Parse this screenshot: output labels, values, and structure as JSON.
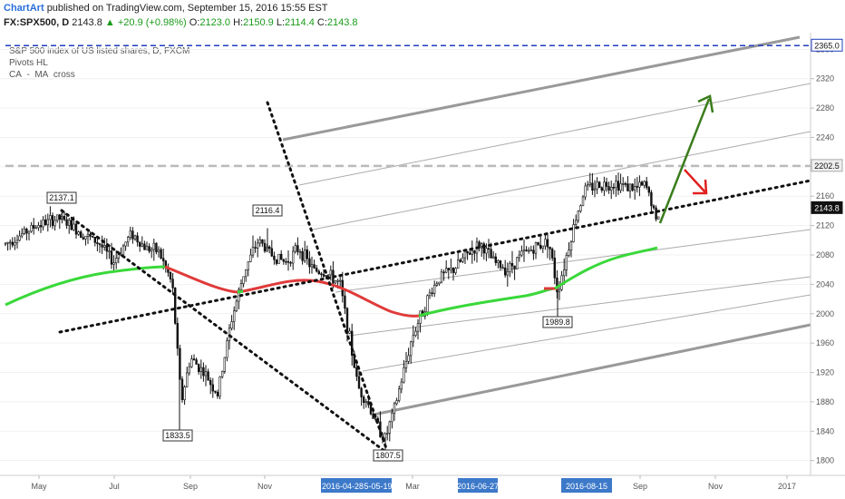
{
  "header": {
    "brand": "ChartArt",
    "published": "published on TradingView.com, September 15, 2016 15:55 EST"
  },
  "ohlc": {
    "symbol": "FX:SPX500, D",
    "close": "2143.8",
    "change": "▲ +20.9 (+0.98%)",
    "o_label": "O:",
    "open": "2123.0",
    "h_label": "H:",
    "high": "2150.9",
    "l_label": "L:",
    "low": "2114.4",
    "c_label": "C:",
    "c_value": "2143.8"
  },
  "legend": {
    "title": "S&P 500 index of US listed shares, D, FXCM",
    "line2": "Pivots HL",
    "line3": "CA_-_MA_cross"
  },
  "colors": {
    "candles": "#111111",
    "ma_up": "#39d839",
    "ma_down": "#e03a3a",
    "channel": "#999999",
    "trend_dots": "#111111",
    "arrow_up": "#3a7d1c",
    "arrow_down": "#e02020",
    "price_badge": "#1f3f8f",
    "date_badge": "#3d79c9",
    "dashed_blue": "#1f3fbf",
    "dashed_grey": "#bbbbbb"
  },
  "chart_data": {
    "type": "candlestick",
    "ylim": [
      1786,
      2374
    ],
    "y_ticks": [
      1800,
      1840,
      1880,
      1920,
      1960,
      2000,
      2040,
      2080,
      2120,
      2160,
      2200,
      2240,
      2280,
      2320,
      2360
    ],
    "x_ticks": [
      "May",
      "Jul",
      "Sep",
      "Nov",
      "Mar",
      "Sep",
      "Nov",
      "2017"
    ],
    "date_badges": [
      "2016-04-28",
      "5-05-19",
      "2016-06-27",
      "2016-08-15"
    ],
    "price_labels": [
      {
        "label": "2365.0",
        "value": 2365.0,
        "style": "blue"
      },
      {
        "label": "2202.5",
        "value": 2202.5,
        "style": "grey"
      },
      {
        "label": "2143.8",
        "value": 2143.8,
        "style": "current"
      }
    ],
    "pivot_labels": [
      {
        "label": "2137.1",
        "value": 2137.1
      },
      {
        "label": "2116.4",
        "value": 2116.4
      },
      {
        "label": "1833.5",
        "value": 1833.5
      },
      {
        "label": "1807.5",
        "value": 1807.5
      },
      {
        "label": "1989.8",
        "value": 1989.8
      }
    ],
    "last_close": 2143.8
  }
}
